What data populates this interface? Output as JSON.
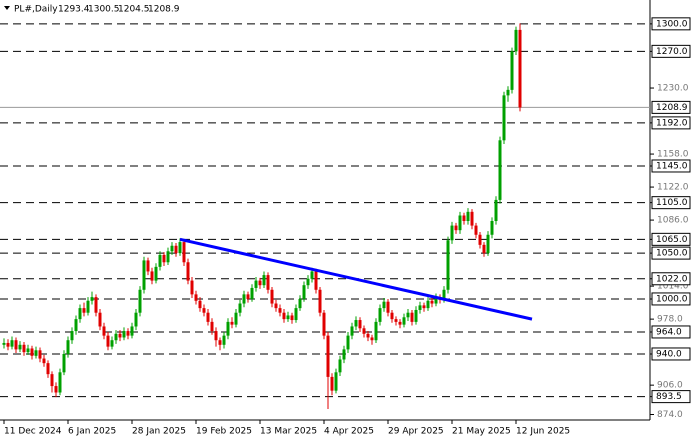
{
  "chart_data": {
    "type": "candlestick",
    "symbol": "PL#,Daily",
    "ylim": [
      868,
      1326
    ],
    "yticks": [
      {
        "value": 1230,
        "label": "1230.0"
      },
      {
        "value": 1158,
        "label": "1158.0"
      },
      {
        "value": 1122,
        "label": "1122.0"
      },
      {
        "value": 1086,
        "label": "1086.0"
      },
      {
        "value": 1014,
        "label": "1014.0"
      },
      {
        "value": 978,
        "label": "978.0"
      },
      {
        "value": 906,
        "label": "906.0"
      },
      {
        "value": 874,
        "label": "874.0"
      }
    ],
    "levels": [
      {
        "value": 1300,
        "label": "1300.0"
      },
      {
        "value": 1270,
        "label": "1270.0"
      },
      {
        "value": 1192,
        "label": "1192.0"
      },
      {
        "value": 1145,
        "label": "1145.0"
      },
      {
        "value": 1105,
        "label": "1105.0"
      },
      {
        "value": 1065,
        "label": "1065.0"
      },
      {
        "value": 1050,
        "label": "1050.0"
      },
      {
        "value": 1022,
        "label": "1022.0"
      },
      {
        "value": 1000,
        "label": "1000.0"
      },
      {
        "value": 964,
        "label": "964.0"
      },
      {
        "value": 940,
        "label": "940.0"
      },
      {
        "value": 893.5,
        "label": "893.5"
      }
    ],
    "current_price": {
      "value": 1208.9,
      "label": "1208.9"
    },
    "xticks": [
      {
        "value": 0,
        "label": "11 Dec 2024"
      },
      {
        "value": 16,
        "label": "6 Jan 2025"
      },
      {
        "value": 32,
        "label": "28 Jan 2025"
      },
      {
        "value": 48,
        "label": "19 Feb 2025"
      },
      {
        "value": 64,
        "label": "13 Mar 2025"
      },
      {
        "value": 80,
        "label": "4 Apr 2025"
      },
      {
        "value": 96,
        "label": "29 Apr 2025"
      },
      {
        "value": 112,
        "label": "21 May 2025"
      },
      {
        "value": 128,
        "label": "12 Jun 2025"
      }
    ],
    "up_color": "#00a000",
    "down_color": "#e00000",
    "trendline": {
      "color": "#0000ff",
      "from": [
        44,
        1065
      ],
      "to": [
        132,
        978
      ]
    },
    "ohlc": [
      [
        950,
        957,
        946,
        952
      ],
      [
        952,
        956,
        944,
        948
      ],
      [
        948,
        959,
        945,
        955
      ],
      [
        955,
        958,
        941,
        945
      ],
      [
        945,
        954,
        942,
        950
      ],
      [
        950,
        953,
        938,
        942
      ],
      [
        942,
        950,
        939,
        946
      ],
      [
        946,
        949,
        934,
        938
      ],
      [
        938,
        948,
        935,
        944
      ],
      [
        944,
        947,
        931,
        935
      ],
      [
        935,
        939,
        926,
        930
      ],
      [
        930,
        933,
        914,
        918
      ],
      [
        918,
        921,
        898,
        905
      ],
      [
        905,
        909,
        893,
        898
      ],
      [
        898,
        924,
        895,
        920
      ],
      [
        920,
        944,
        917,
        940
      ],
      [
        940,
        959,
        936,
        955
      ],
      [
        955,
        969,
        951,
        965
      ],
      [
        965,
        982,
        961,
        978
      ],
      [
        978,
        994,
        974,
        990
      ],
      [
        990,
        996,
        981,
        985
      ],
      [
        985,
        1002,
        982,
        998
      ],
      [
        998,
        1008,
        994,
        1002
      ],
      [
        1002,
        1005,
        981,
        985
      ],
      [
        985,
        989,
        966,
        970
      ],
      [
        970,
        974,
        956,
        960
      ],
      [
        960,
        964,
        944,
        948
      ],
      [
        948,
        959,
        945,
        955
      ],
      [
        955,
        966,
        951,
        962
      ],
      [
        962,
        966,
        954,
        958
      ],
      [
        958,
        969,
        955,
        965
      ],
      [
        965,
        968,
        956,
        960
      ],
      [
        960,
        974,
        957,
        970
      ],
      [
        970,
        989,
        966,
        985
      ],
      [
        985,
        1014,
        981,
        1010
      ],
      [
        1010,
        1046,
        1006,
        1042
      ],
      [
        1042,
        1045,
        1026,
        1030
      ],
      [
        1030,
        1034,
        1016,
        1020
      ],
      [
        1020,
        1039,
        1017,
        1035
      ],
      [
        1035,
        1052,
        1031,
        1048
      ],
      [
        1048,
        1051,
        1036,
        1040
      ],
      [
        1040,
        1056,
        1037,
        1052
      ],
      [
        1052,
        1062,
        1048,
        1058
      ],
      [
        1058,
        1061,
        1046,
        1050
      ],
      [
        1050,
        1066,
        1047,
        1062
      ],
      [
        1062,
        1065,
        1036,
        1040
      ],
      [
        1040,
        1044,
        1016,
        1020
      ],
      [
        1020,
        1024,
        1001,
        1005
      ],
      [
        1005,
        1009,
        994,
        998
      ],
      [
        998,
        1002,
        986,
        990
      ],
      [
        990,
        994,
        981,
        985
      ],
      [
        985,
        989,
        971,
        975
      ],
      [
        975,
        979,
        961,
        965
      ],
      [
        965,
        969,
        948,
        955
      ],
      [
        955,
        958,
        944,
        950
      ],
      [
        950,
        964,
        946,
        960
      ],
      [
        960,
        979,
        956,
        975
      ],
      [
        975,
        980,
        968,
        972
      ],
      [
        972,
        989,
        969,
        985
      ],
      [
        985,
        999,
        981,
        995
      ],
      [
        995,
        1009,
        991,
        1005
      ],
      [
        1005,
        1008,
        996,
        1000
      ],
      [
        1000,
        1016,
        997,
        1012
      ],
      [
        1012,
        1024,
        1008,
        1020
      ],
      [
        1020,
        1023,
        1011,
        1015
      ],
      [
        1015,
        1030,
        1012,
        1026
      ],
      [
        1026,
        1029,
        1006,
        1010
      ],
      [
        1010,
        1013,
        991,
        995
      ],
      [
        995,
        999,
        986,
        990
      ],
      [
        990,
        994,
        981,
        985
      ],
      [
        985,
        989,
        974,
        978
      ],
      [
        978,
        986,
        975,
        982
      ],
      [
        982,
        985,
        973,
        977
      ],
      [
        977,
        994,
        974,
        990
      ],
      [
        990,
        1004,
        987,
        1000
      ],
      [
        1000,
        1019,
        997,
        1015
      ],
      [
        1015,
        1026,
        1011,
        1022
      ],
      [
        1022,
        1034,
        1018,
        1030
      ],
      [
        1030,
        1033,
        1006,
        1010
      ],
      [
        1010,
        1013,
        981,
        985
      ],
      [
        985,
        988,
        956,
        960
      ],
      [
        960,
        964,
        880,
        915
      ],
      [
        915,
        919,
        895,
        900
      ],
      [
        900,
        924,
        897,
        920
      ],
      [
        920,
        938,
        916,
        934
      ],
      [
        934,
        949,
        930,
        945
      ],
      [
        945,
        964,
        941,
        960
      ],
      [
        960,
        974,
        956,
        970
      ],
      [
        970,
        981,
        966,
        977
      ],
      [
        977,
        980,
        964,
        968
      ],
      [
        968,
        971,
        958,
        962
      ],
      [
        962,
        965,
        954,
        958
      ],
      [
        958,
        961,
        950,
        955
      ],
      [
        955,
        979,
        952,
        975
      ],
      [
        975,
        994,
        971,
        990
      ],
      [
        990,
        1001,
        986,
        997
      ],
      [
        997,
        1000,
        981,
        985
      ],
      [
        985,
        988,
        974,
        978
      ],
      [
        978,
        981,
        971,
        975
      ],
      [
        975,
        978,
        968,
        972
      ],
      [
        972,
        984,
        969,
        980
      ],
      [
        980,
        989,
        976,
        985
      ],
      [
        985,
        988,
        971,
        975
      ],
      [
        975,
        992,
        972,
        988
      ],
      [
        988,
        997,
        984,
        993
      ],
      [
        993,
        996,
        986,
        990
      ],
      [
        990,
        1002,
        987,
        998
      ],
      [
        998,
        1001,
        991,
        995
      ],
      [
        995,
        1006,
        992,
        1002
      ],
      [
        1002,
        1005,
        995,
        999
      ],
      [
        999,
        1014,
        996,
        1010
      ],
      [
        1010,
        1068,
        1006,
        1064
      ],
      [
        1064,
        1084,
        1060,
        1080
      ],
      [
        1080,
        1083,
        1071,
        1075
      ],
      [
        1075,
        1095,
        1071,
        1091
      ],
      [
        1091,
        1094,
        1081,
        1085
      ],
      [
        1085,
        1099,
        1081,
        1095
      ],
      [
        1095,
        1098,
        1076,
        1080
      ],
      [
        1080,
        1083,
        1066,
        1070
      ],
      [
        1070,
        1073,
        1055,
        1059
      ],
      [
        1059,
        1062,
        1046,
        1050
      ],
      [
        1050,
        1074,
        1047,
        1070
      ],
      [
        1070,
        1089,
        1066,
        1085
      ],
      [
        1085,
        1112,
        1081,
        1108
      ],
      [
        1108,
        1177,
        1104,
        1173
      ],
      [
        1173,
        1226,
        1169,
        1222
      ],
      [
        1222,
        1232,
        1215,
        1228
      ],
      [
        1228,
        1274,
        1224,
        1270
      ],
      [
        1270,
        1297,
        1266,
        1293.4
      ],
      [
        1293.4,
        1300.5,
        1204.5,
        1208.9
      ]
    ]
  }
}
